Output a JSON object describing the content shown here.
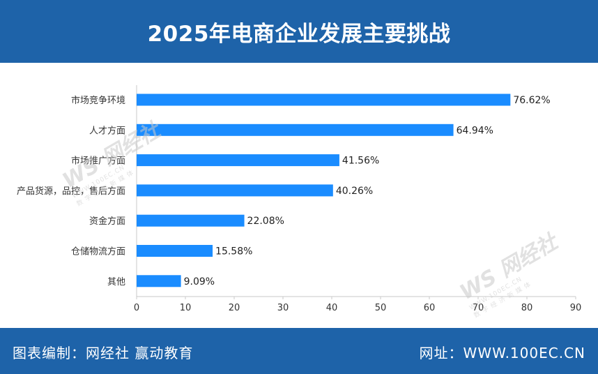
{
  "header": {
    "title": "2025年电商企业发展主要挑战"
  },
  "colors": {
    "bar": "#1a8cff",
    "header_bg": "#1e63a9",
    "axis": "#c8c8c8"
  },
  "watermark": {
    "brand": "网经社",
    "logo": "WS",
    "url": "WWW.100EC.CN",
    "tagline": "数 字 经 济 新 媒 体"
  },
  "chart_data": {
    "type": "bar",
    "orientation": "horizontal",
    "categories": [
      "市场竞争环境",
      "人才方面",
      "市场推广方面",
      "产品货源，品控，售后方面",
      "资金方面",
      "仓储物流方面",
      "其他"
    ],
    "values": [
      76.62,
      64.94,
      41.56,
      40.26,
      22.08,
      15.58,
      9.09
    ],
    "value_labels": [
      "76.62%",
      "64.94%",
      "41.56%",
      "40.26%",
      "22.08%",
      "15.58%",
      "9.09%"
    ],
    "xlim": [
      0,
      90
    ],
    "xticks": [
      "0",
      "10",
      "20",
      "30",
      "40",
      "50",
      "60",
      "70",
      "80",
      "90"
    ],
    "grid": false,
    "legend": "none"
  },
  "footer": {
    "source": "图表编制：网经社 赢动教育",
    "website": "网址：WWW.100EC.CN"
  }
}
